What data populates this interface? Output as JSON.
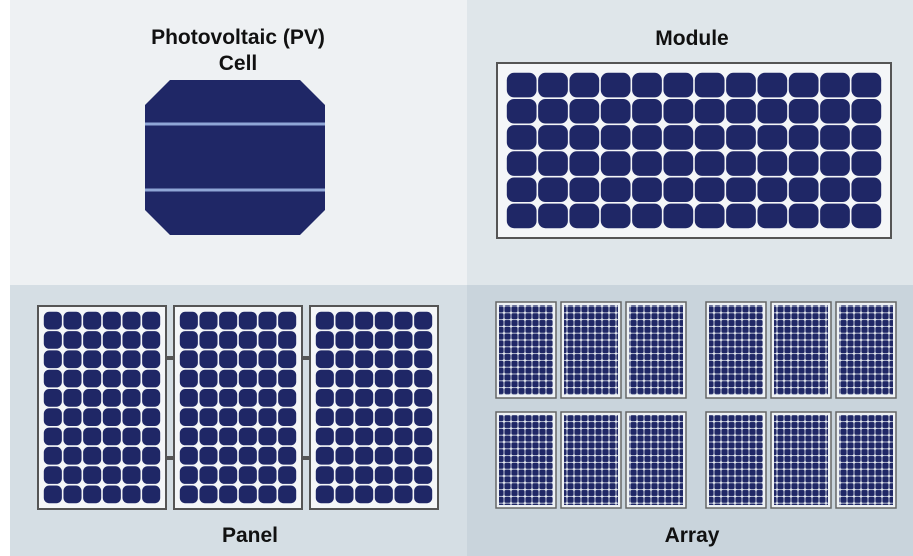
{
  "cell": {
    "label": [
      "Photovoltaic (PV)",
      "Cell"
    ]
  },
  "module": {
    "label": "Module"
  },
  "panel": {
    "label": "Panel"
  },
  "array": {
    "label": "Array"
  }
}
